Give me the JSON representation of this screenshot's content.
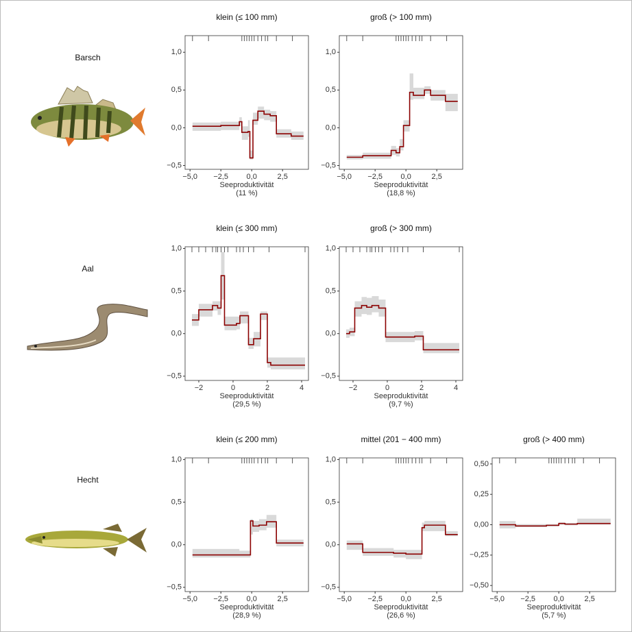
{
  "chart_data": [
    {
      "species": "Barsch",
      "panels": [
        {
          "type": "line",
          "step": true,
          "title": "klein (≤ 100 mm)",
          "xlabel": "Seeproduktivität",
          "note": "(11 %)",
          "color": "#8b0000",
          "band_color": "#d9d9d9",
          "xlim": [
            -5.4,
            4.6
          ],
          "xticks": [
            {
              "value": -5,
              "label": "−5,0"
            },
            {
              "value": -2.5,
              "label": "−2,5"
            },
            {
              "value": 0,
              "label": "0,0"
            },
            {
              "value": 2.5,
              "label": "2,5"
            }
          ],
          "ylim": [
            -0.55,
            1.22
          ],
          "yticks": [
            {
              "value": -0.5,
              "label": "−0,5"
            },
            {
              "value": 0,
              "label": "0,0"
            },
            {
              "value": 0.5,
              "label": "0,5"
            },
            {
              "value": 1,
              "label": "1,0"
            }
          ],
          "rug": [
            -4.8,
            -3.5,
            -0.8,
            -0.6,
            -0.4,
            -0.2,
            0,
            0.2,
            0.5,
            0.8,
            1.1,
            1.3,
            2.0,
            3.3
          ],
          "x": [
            -4.8,
            -2.5,
            -1.0,
            -0.8,
            -0.3,
            -0.15,
            0.1,
            0.5,
            1.0,
            1.5,
            2.0,
            3.2,
            4.2
          ],
          "values": [
            0.02,
            0.03,
            0.08,
            -0.06,
            -0.05,
            -0.4,
            0.1,
            0.22,
            0.18,
            0.16,
            -0.08,
            -0.11,
            -0.11
          ],
          "lower": [
            -0.04,
            -0.03,
            0.02,
            -0.16,
            -0.12,
            -0.42,
            0.04,
            0.12,
            0.1,
            0.08,
            -0.13,
            -0.16,
            -0.16
          ],
          "upper": [
            0.07,
            0.08,
            0.14,
            0.02,
            0.1,
            -0.3,
            0.2,
            0.28,
            0.24,
            0.22,
            -0.02,
            -0.05,
            -0.05
          ]
        },
        {
          "type": "line",
          "step": true,
          "title": "groß (> 100 mm)",
          "xlabel": "Seeproduktivität",
          "note": "(18,8 %)",
          "color": "#8b0000",
          "band_color": "#d9d9d9",
          "xlim": [
            -5.4,
            4.6
          ],
          "xticks": [
            {
              "value": -5,
              "label": "−5,0"
            },
            {
              "value": -2.5,
              "label": "−2,5"
            },
            {
              "value": 0,
              "label": "0,0"
            },
            {
              "value": 2.5,
              "label": "2,5"
            }
          ],
          "ylim": [
            -0.55,
            1.22
          ],
          "yticks": [
            {
              "value": -0.5,
              "label": "−0,5"
            },
            {
              "value": 0,
              "label": "0,0"
            },
            {
              "value": 0.5,
              "label": "0,5"
            },
            {
              "value": 1,
              "label": "1,0"
            }
          ],
          "rug": [
            -4.8,
            -3.5,
            -0.8,
            -0.6,
            -0.4,
            -0.2,
            0,
            0.2,
            0.5,
            0.8,
            1.1,
            1.3,
            2.0,
            3.3
          ],
          "x": [
            -4.8,
            -3.5,
            -1.2,
            -0.8,
            -0.5,
            -0.2,
            0.3,
            0.6,
            1.5,
            2.0,
            3.2,
            4.2
          ],
          "values": [
            -0.39,
            -0.37,
            -0.3,
            -0.33,
            -0.25,
            0.03,
            0.47,
            0.43,
            0.5,
            0.43,
            0.35,
            0.35
          ],
          "lower": [
            -0.42,
            -0.41,
            -0.36,
            -0.38,
            -0.3,
            -0.05,
            0.37,
            0.38,
            0.45,
            0.36,
            0.22,
            0.22
          ],
          "upper": [
            -0.36,
            -0.33,
            -0.24,
            -0.27,
            -0.15,
            0.1,
            0.72,
            0.53,
            0.55,
            0.5,
            0.45,
            0.45
          ]
        }
      ]
    },
    {
      "species": "Aal",
      "panels": [
        {
          "type": "line",
          "step": true,
          "title": "klein (≤ 300 mm)",
          "xlabel": "Seeproduktivität",
          "note": "(29,5 %)",
          "color": "#8b0000",
          "band_color": "#d9d9d9",
          "xlim": [
            -2.8,
            4.4
          ],
          "xticks": [
            {
              "value": -2,
              "label": "−2"
            },
            0,
            2,
            4
          ],
          "ylim": [
            -0.55,
            1.02
          ],
          "yticks": [
            {
              "value": -0.5,
              "label": "−0,5"
            },
            {
              "value": 0,
              "label": "0,0"
            },
            {
              "value": 0.5,
              "label": "0,5"
            },
            {
              "value": 1,
              "label": "1,0"
            }
          ],
          "rug": [
            -2.4,
            -2.0,
            -1.6,
            -1.2,
            -1.0,
            -0.9,
            -0.7,
            -0.5,
            -0.3,
            0.2,
            0.4,
            0.6,
            0.9,
            1.2,
            2.1,
            4.2
          ],
          "x": [
            -2.4,
            -2.0,
            -1.2,
            -0.9,
            -0.7,
            -0.5,
            0.2,
            0.4,
            0.9,
            1.2,
            1.6,
            2.0,
            2.2,
            4.2
          ],
          "values": [
            0.16,
            0.28,
            0.33,
            0.3,
            0.68,
            0.1,
            0.12,
            0.21,
            -0.13,
            -0.06,
            0.23,
            -0.34,
            -0.37,
            -0.37
          ],
          "lower": [
            0.09,
            0.2,
            0.27,
            0.22,
            0.4,
            0.04,
            0.05,
            0.12,
            -0.18,
            -0.15,
            0.16,
            -0.4,
            -0.42,
            -0.42
          ],
          "upper": [
            0.23,
            0.35,
            0.38,
            0.38,
            0.96,
            0.2,
            0.2,
            0.26,
            -0.05,
            0.02,
            0.26,
            -0.28,
            -0.28,
            -0.28
          ]
        },
        {
          "type": "line",
          "step": true,
          "title": "groß (> 300 mm)",
          "xlabel": "Seeproduktivität",
          "note": "(9,7 %)",
          "color": "#8b0000",
          "band_color": "#d9d9d9",
          "xlim": [
            -2.8,
            4.4
          ],
          "xticks": [
            {
              "value": -2,
              "label": "−2"
            },
            0,
            2,
            4
          ],
          "ylim": [
            -0.55,
            1.02
          ],
          "yticks": [
            {
              "value": -0.5,
              "label": "−0,5"
            },
            {
              "value": 0,
              "label": "0,0"
            },
            {
              "value": 0.5,
              "label": "0,5"
            },
            {
              "value": 1,
              "label": "1,0"
            }
          ],
          "rug": [
            -2.4,
            -2.0,
            -1.6,
            -1.2,
            -1.0,
            -0.9,
            -0.7,
            -0.5,
            -0.3,
            0.2,
            0.4,
            0.6,
            0.9,
            1.2,
            2.1,
            4.2
          ],
          "x": [
            -2.4,
            -2.2,
            -1.9,
            -1.5,
            -1.2,
            -0.9,
            -0.5,
            -0.1,
            1.0,
            1.6,
            2.1,
            4.2
          ],
          "values": [
            0,
            0.02,
            0.3,
            0.33,
            0.31,
            0.33,
            0.3,
            -0.04,
            -0.04,
            -0.03,
            -0.19,
            -0.19
          ],
          "lower": [
            -0.05,
            -0.03,
            0.2,
            0.23,
            0.22,
            0.25,
            0.2,
            -0.1,
            -0.1,
            -0.08,
            -0.23,
            -0.23
          ],
          "upper": [
            0.05,
            0.07,
            0.38,
            0.43,
            0.42,
            0.44,
            0.4,
            0.02,
            0.02,
            0.03,
            -0.11,
            -0.11
          ]
        }
      ]
    },
    {
      "species": "Hecht",
      "panels": [
        {
          "type": "line",
          "step": true,
          "title": "klein (≤ 200 mm)",
          "xlabel": "Seeproduktivität",
          "note": "(28,9 %)",
          "color": "#8b0000",
          "band_color": "#d9d9d9",
          "xlim": [
            -5.4,
            4.6
          ],
          "xticks": [
            {
              "value": -5,
              "label": "−5,0"
            },
            {
              "value": -2.5,
              "label": "−2,5"
            },
            {
              "value": 0,
              "label": "0,0"
            },
            {
              "value": 2.5,
              "label": "2,5"
            }
          ],
          "ylim": [
            -0.55,
            1.02
          ],
          "yticks": [
            {
              "value": -0.5,
              "label": "−0,5"
            },
            {
              "value": 0,
              "label": "0,0"
            },
            {
              "value": 0.5,
              "label": "0,5"
            },
            {
              "value": 1,
              "label": "1,0"
            }
          ],
          "rug": [
            -4.8,
            -3.5,
            -0.8,
            -0.6,
            -0.4,
            -0.2,
            0,
            0.2,
            0.5,
            0.8,
            1.1,
            1.3,
            2.0,
            3.3
          ],
          "x": [
            -4.8,
            -1.0,
            -0.1,
            0.1,
            0.6,
            1.2,
            2.0,
            4.2
          ],
          "values": [
            -0.12,
            -0.12,
            0.28,
            0.22,
            0.23,
            0.27,
            0.02,
            0.02
          ],
          "lower": [
            -0.15,
            -0.15,
            0.12,
            0.15,
            0.17,
            0.2,
            -0.02,
            -0.02
          ],
          "upper": [
            -0.05,
            -0.07,
            0.3,
            0.28,
            0.3,
            0.35,
            0.06,
            0.06
          ]
        },
        {
          "type": "line",
          "step": true,
          "title": "mittel (201 − 400 mm)",
          "xlabel": "Seeproduktivität",
          "note": "(26,6 %)",
          "color": "#8b0000",
          "band_color": "#d9d9d9",
          "xlim": [
            -5.4,
            4.6
          ],
          "xticks": [
            {
              "value": -5,
              "label": "−5,0"
            },
            {
              "value": -2.5,
              "label": "−2,5"
            },
            {
              "value": 0,
              "label": "0,0"
            },
            {
              "value": 2.5,
              "label": "2,5"
            }
          ],
          "ylim": [
            -0.55,
            1.02
          ],
          "yticks": [
            {
              "value": -0.5,
              "label": "−0,5"
            },
            {
              "value": 0,
              "label": "0,0"
            },
            {
              "value": 0.5,
              "label": "0,5"
            },
            {
              "value": 1,
              "label": "1,0"
            }
          ],
          "rug": [
            -4.8,
            -3.5,
            -0.8,
            -0.6,
            -0.4,
            -0.2,
            0,
            0.2,
            0.5,
            0.8,
            1.1,
            1.3,
            2.0,
            3.3
          ],
          "x": [
            -4.8,
            -3.5,
            -1.0,
            0.0,
            1.3,
            1.5,
            3.2,
            4.2
          ],
          "values": [
            0.01,
            -0.09,
            -0.1,
            -0.11,
            0.2,
            0.23,
            0.12,
            0.12
          ],
          "lower": [
            -0.06,
            -0.13,
            -0.15,
            -0.17,
            0.16,
            0.16,
            0.1,
            0.1
          ],
          "upper": [
            0.05,
            -0.04,
            -0.06,
            -0.06,
            0.26,
            0.28,
            0.16,
            0.16
          ]
        },
        {
          "type": "line",
          "step": true,
          "title": "groß (> 400 mm)",
          "xlabel": "Seeproduktivität",
          "note": "(5,7 %)",
          "color": "#8b0000",
          "band_color": "#d9d9d9",
          "xlim": [
            -5.4,
            4.6
          ],
          "xticks": [
            {
              "value": -5,
              "label": "−5,0"
            },
            {
              "value": -2.5,
              "label": "−2,5"
            },
            {
              "value": 0,
              "label": "0,0"
            },
            {
              "value": 2.5,
              "label": "2,5"
            }
          ],
          "ylim": [
            -0.55,
            0.55
          ],
          "yticks": [
            {
              "value": -0.5,
              "label": "−0,50"
            },
            {
              "value": -0.25,
              "label": "−0,25"
            },
            {
              "value": 0,
              "label": "0,00"
            },
            {
              "value": 0.25,
              "label": "0,25"
            },
            {
              "value": 0.5,
              "label": "0,50"
            }
          ],
          "rug": [
            -4.8,
            -3.5,
            -0.8,
            -0.6,
            -0.4,
            -0.2,
            0,
            0.2,
            0.5,
            0.8,
            1.1,
            1.3,
            2.0,
            3.3
          ],
          "x": [
            -4.8,
            -3.5,
            -1.0,
            0.0,
            0.5,
            1.5,
            4.2
          ],
          "values": [
            0,
            -0.01,
            -0.005,
            0.01,
            0.005,
            0.01,
            0.01
          ],
          "lower": [
            -0.03,
            -0.02,
            -0.015,
            0,
            -0.005,
            0,
            0
          ],
          "upper": [
            0.03,
            0.005,
            0.005,
            0.02,
            0.015,
            0.05,
            0.02
          ]
        }
      ]
    }
  ]
}
